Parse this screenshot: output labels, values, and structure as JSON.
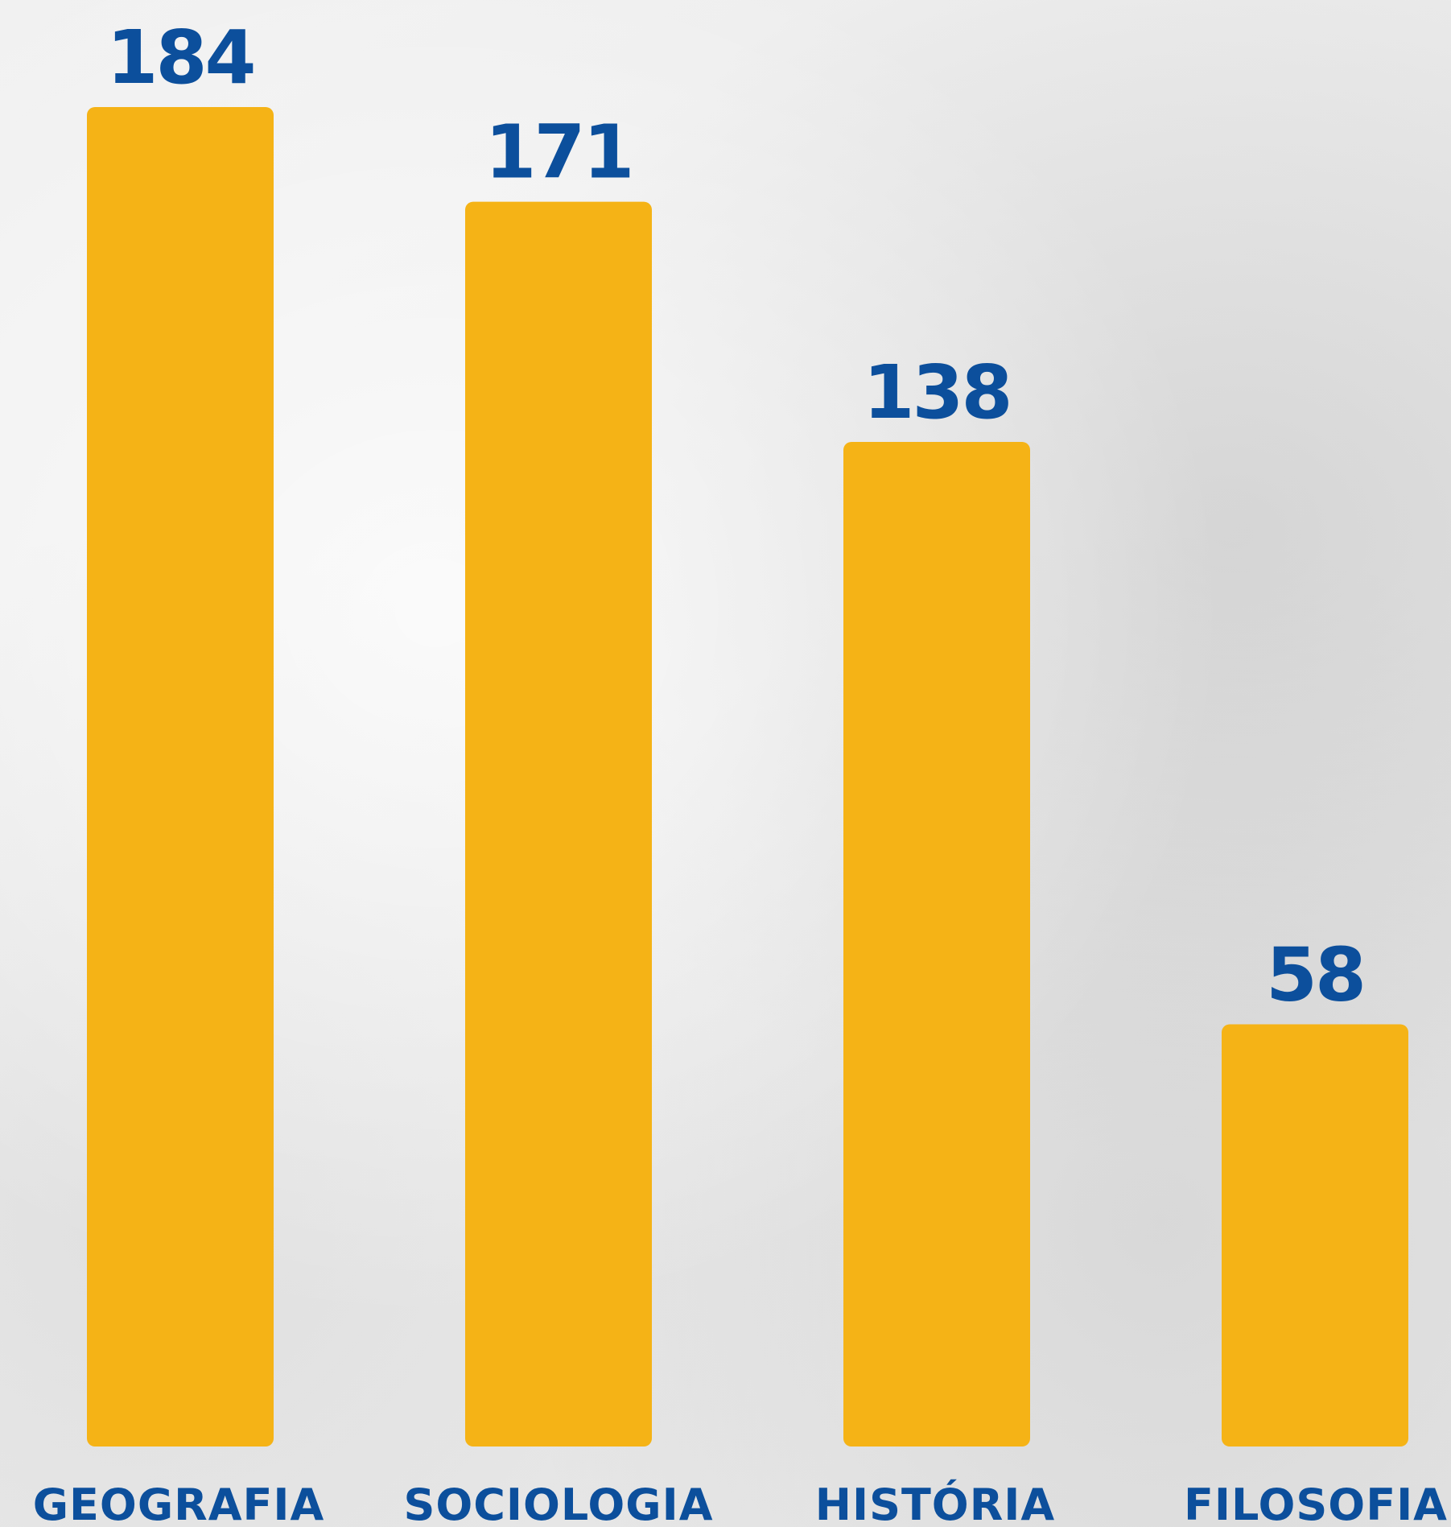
{
  "chart_data": {
    "type": "bar",
    "categories": [
      "GEOGRAFIA",
      "SOCIOLOGIA",
      "HISTÓRIA",
      "FILOSOFIA"
    ],
    "values": [
      184,
      171,
      138,
      58
    ],
    "title": "",
    "xlabel": "",
    "ylabel": "",
    "ylim": [
      0,
      184
    ],
    "grid": false,
    "legend": "none",
    "data_labels": true,
    "colors": {
      "bar": "#f5b316",
      "label": "#0c4f9c",
      "background": "#ececec"
    }
  }
}
